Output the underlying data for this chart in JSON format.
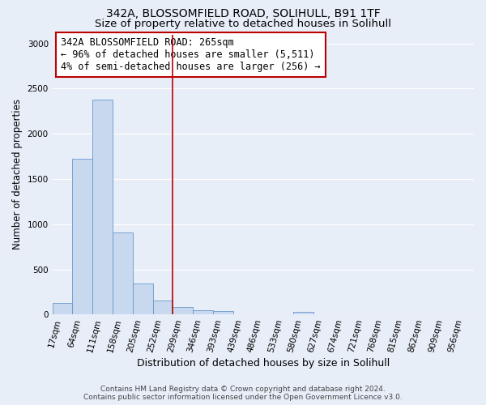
{
  "title": "342A, BLOSSOMFIELD ROAD, SOLIHULL, B91 1TF",
  "subtitle": "Size of property relative to detached houses in Solihull",
  "xlabel": "Distribution of detached houses by size in Solihull",
  "ylabel": "Number of detached properties",
  "footer_line1": "Contains HM Land Registry data © Crown copyright and database right 2024.",
  "footer_line2": "Contains public sector information licensed under the Open Government Licence v3.0.",
  "bin_labels": [
    "17sqm",
    "64sqm",
    "111sqm",
    "158sqm",
    "205sqm",
    "252sqm",
    "299sqm",
    "346sqm",
    "393sqm",
    "439sqm",
    "486sqm",
    "533sqm",
    "580sqm",
    "627sqm",
    "674sqm",
    "721sqm",
    "768sqm",
    "815sqm",
    "862sqm",
    "909sqm",
    "956sqm"
  ],
  "bar_values": [
    125,
    1720,
    2380,
    905,
    345,
    155,
    80,
    50,
    35,
    0,
    0,
    0,
    30,
    0,
    0,
    0,
    0,
    0,
    0,
    0,
    0
  ],
  "bar_color": "#c8d8ee",
  "bar_edgecolor": "#6699cc",
  "vline_x": 5.5,
  "vline_color": "#bb0000",
  "annotation_text": "342A BLOSSOMFIELD ROAD: 265sqm\n← 96% of detached houses are smaller (5,511)\n4% of semi-detached houses are larger (256) →",
  "annotation_box_facecolor": "#ffffff",
  "annotation_box_edgecolor": "#bb0000",
  "ylim": [
    0,
    3100
  ],
  "yticks": [
    0,
    500,
    1000,
    1500,
    2000,
    2500,
    3000
  ],
  "background_color": "#e8eef8",
  "plot_bg_color": "#e8eef8",
  "grid_color": "#ffffff",
  "title_fontsize": 10,
  "subtitle_fontsize": 9.5,
  "xlabel_fontsize": 9,
  "ylabel_fontsize": 8.5,
  "tick_label_fontsize": 7.5,
  "annotation_fontsize": 8.5,
  "footer_fontsize": 6.5
}
